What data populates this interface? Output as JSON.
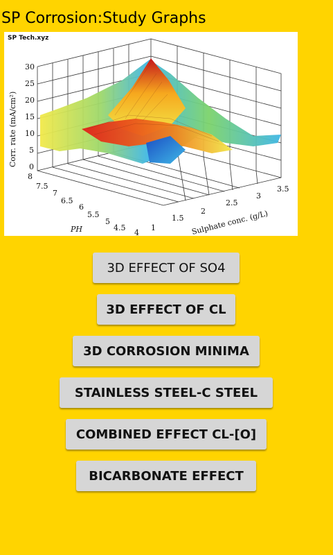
{
  "app": {
    "title": "SP Corrosion:Study Graphs"
  },
  "figure": {
    "watermark": "SP Tech.xyz",
    "z_axis_label": "Corr. rate (mA/cm²)",
    "z_ticks": [
      "30",
      "25",
      "20",
      "15",
      "10",
      "5",
      "0"
    ],
    "ph_label": "PH",
    "ph_ticks": [
      "8",
      "7.5",
      "7",
      "6.5",
      "6",
      "5.5",
      "5",
      "4.5",
      "4"
    ],
    "sulphate_label": "Sulphate conc. (g/L)",
    "sulphate_ticks": [
      "1",
      "1.5",
      "2",
      "2.5",
      "3",
      "3.5"
    ],
    "colors": {
      "hot": "#E0201A",
      "warm": "#F6A81E",
      "mid": "#F2E94A",
      "cool": "#7CD36B",
      "cold": "#3FB7E6",
      "deep": "#1B4FC4"
    }
  },
  "buttons": [
    {
      "label": "3D EFFECT OF SO4"
    },
    {
      "label": "3D EFFECT OF CL"
    },
    {
      "label": "3D CORROSION MINIMA"
    },
    {
      "label": "STAINLESS STEEL-C STEEL"
    },
    {
      "label": "COMBINED EFFECT CL-[O]"
    },
    {
      "label": "BICARBONATE EFFECT"
    }
  ]
}
